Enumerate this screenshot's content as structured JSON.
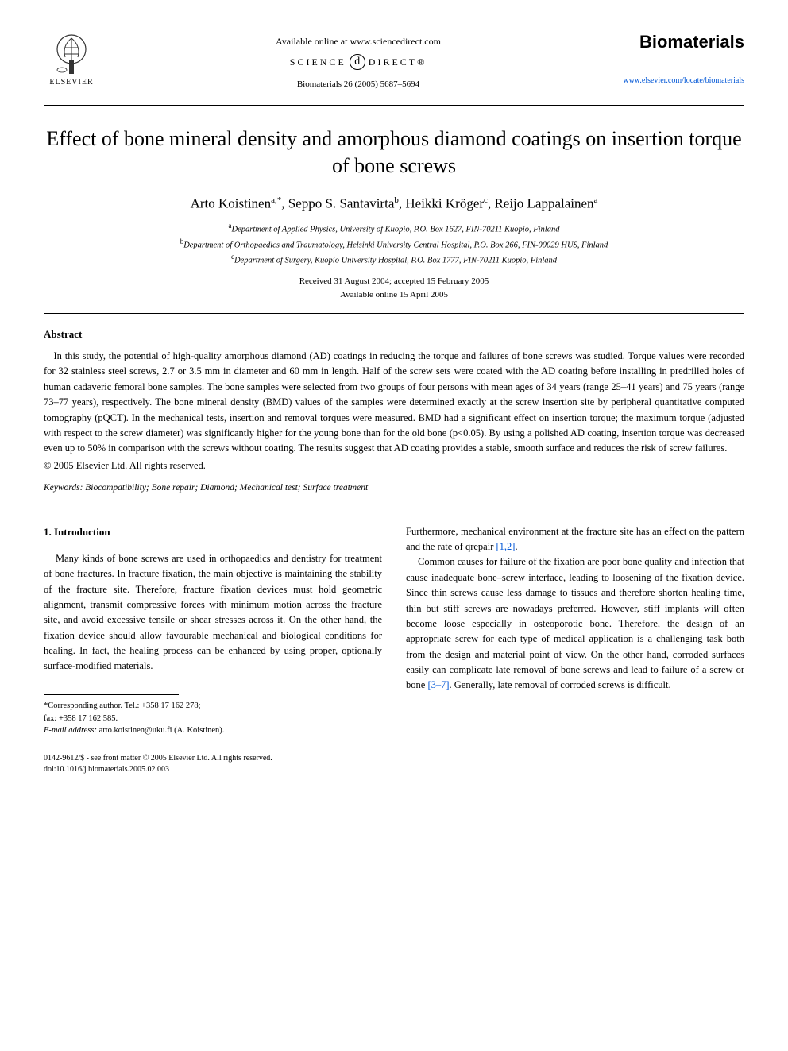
{
  "header": {
    "publisher": "ELSEVIER",
    "available": "Available online at www.sciencedirect.com",
    "science_direct_left": "SCIENCE",
    "science_direct_right": "DIRECT®",
    "citation": "Biomaterials 26 (2005) 5687–5694",
    "journal_name": "Biomaterials",
    "journal_url": "www.elsevier.com/locate/biomaterials"
  },
  "title": "Effect of bone mineral density and amorphous diamond coatings on insertion torque of bone screws",
  "authors_html": "Arto Koistinen<sup>a,*</sup>, Seppo S. Santavirta<sup>b</sup>, Heikki Kröger<sup>c</sup>, Reijo Lappalainen<sup>a</sup>",
  "affiliations": {
    "a": "Department of Applied Physics, University of Kuopio, P.O. Box 1627, FIN-70211 Kuopio, Finland",
    "b": "Department of Orthopaedics and Traumatology, Helsinki University Central Hospital, P.O. Box 266, FIN-00029 HUS, Finland",
    "c": "Department of Surgery, Kuopio University Hospital, P.O. Box 1777, FIN-70211 Kuopio, Finland"
  },
  "dates": {
    "received": "Received 31 August 2004; accepted 15 February 2005",
    "online": "Available online 15 April 2005"
  },
  "abstract": {
    "heading": "Abstract",
    "body": "In this study, the potential of high-quality amorphous diamond (AD) coatings in reducing the torque and failures of bone screws was studied. Torque values were recorded for 32 stainless steel screws, 2.7 or 3.5 mm in diameter and 60 mm in length. Half of the screw sets were coated with the AD coating before installing in predrilled holes of human cadaveric femoral bone samples. The bone samples were selected from two groups of four persons with mean ages of 34 years (range 25–41 years) and 75 years (range 73–77 years), respectively. The bone mineral density (BMD) values of the samples were determined exactly at the screw insertion site by peripheral quantitative computed tomography (pQCT). In the mechanical tests, insertion and removal torques were measured. BMD had a significant effect on insertion torque; the maximum torque (adjusted with respect to the screw diameter) was significantly higher for the young bone than for the old bone (p<0.05). By using a polished AD coating, insertion torque was decreased even up to 50% in comparison with the screws without coating. The results suggest that AD coating provides a stable, smooth surface and reduces the risk of screw failures.",
    "copyright": "© 2005 Elsevier Ltd. All rights reserved."
  },
  "keywords": {
    "label": "Keywords:",
    "list": "Biocompatibility; Bone repair; Diamond; Mechanical test; Surface treatment"
  },
  "section1": {
    "heading": "1. Introduction",
    "para1": "Many kinds of bone screws are used in orthopaedics and dentistry for treatment of bone fractures. In fracture fixation, the main objective is maintaining the stability of the fracture site. Therefore, fracture fixation devices must hold geometric alignment, transmit compressive forces with minimum motion across the fracture site, and avoid excessive tensile or shear stresses across it. On the other hand, the fixation device should allow favourable mechanical and biological conditions for healing. In fact, the healing process can be enhanced by using proper, optionally surface-modified materials.",
    "para2a": "Furthermore, mechanical environment at the fracture site has an effect on the pattern and the rate of qrepair ",
    "ref12": "[1,2]",
    "para2b": ".",
    "para3a": "Common causes for failure of the fixation are poor bone quality and infection that cause inadequate bone–screw interface, leading to loosening of the fixation device. Since thin screws cause less damage to tissues and therefore shorten healing time, thin but stiff screws are nowadays preferred. However, stiff implants will often become loose especially in osteoporotic bone. Therefore, the design of an appropriate screw for each type of medical application is a challenging task both from the design and material point of view. On the other hand, corroded surfaces easily can complicate late removal of bone screws and lead to failure of a screw or bone ",
    "ref37": "[3–7]",
    "para3b": ". Generally, late removal of corroded screws is difficult."
  },
  "footnote": {
    "corr_label": "*Corresponding author. Tel.: +358 17 162 278;",
    "fax": "fax: +358 17 162 585.",
    "email_label": "E-mail address:",
    "email": "arto.koistinen@uku.fi (A. Koistinen)."
  },
  "bottom": {
    "line1": "0142-9612/$ - see front matter © 2005 Elsevier Ltd. All rights reserved.",
    "line2": "doi:10.1016/j.biomaterials.2005.02.003"
  },
  "colors": {
    "text": "#000000",
    "link": "#0056d6",
    "background": "#ffffff"
  },
  "typography": {
    "title_fontsize": 26,
    "author_fontsize": 17,
    "body_fontsize": 12.5,
    "affiliation_fontsize": 10.5,
    "font_family_body": "Georgia, Times New Roman, serif",
    "font_family_journal": "Arial, sans-serif"
  }
}
